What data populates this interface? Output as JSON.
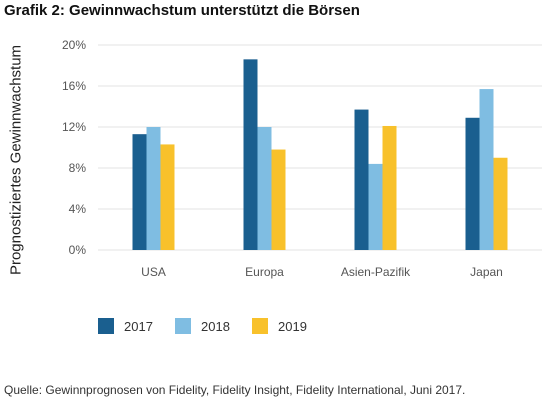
{
  "title": "Grafik 2: Gewinnwachstum unterstützt die Börsen",
  "source": "Quelle: Gewinnprognosen von Fidelity, Fidelity Insight, Fidelity International, Juni 2017.",
  "chart_data": {
    "type": "bar",
    "title": "Grafik 2: Gewinnwachstum unterstützt die Börsen",
    "xlabel": "",
    "ylabel": "Prognostiziertes Gewinnwachstum",
    "categories": [
      "USA",
      "Europa",
      "Asien-Pazifik",
      "Japan"
    ],
    "series": [
      {
        "name": "2017",
        "color": "#1a5f8f",
        "values": [
          11.3,
          18.6,
          13.7,
          12.9
        ]
      },
      {
        "name": "2018",
        "color": "#7fbde2",
        "values": [
          12.0,
          12.0,
          8.4,
          15.7
        ]
      },
      {
        "name": "2019",
        "color": "#f8c12b",
        "values": [
          10.3,
          9.8,
          12.1,
          9.0
        ]
      }
    ],
    "ylim": [
      0,
      20
    ],
    "yticks": [
      0,
      4,
      8,
      12,
      16,
      20
    ],
    "ytick_labels": [
      "0%",
      "4%",
      "8%",
      "12%",
      "16%",
      "20%"
    ],
    "grid": true,
    "legend_position": "bottom",
    "colors": {
      "grid": "#e3e3e3",
      "axis_text": "#555555"
    }
  }
}
